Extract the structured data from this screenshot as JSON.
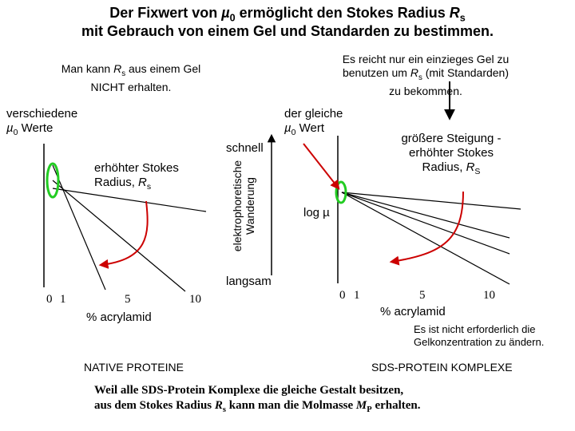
{
  "title": {
    "line1_a": "Der Fixwert von ",
    "line1_mu": "µ",
    "line1_mu_sub": "0",
    "line1_b": " ermöglicht den Stokes Radius ",
    "line1_r": "R",
    "line1_r_sub": "s",
    "line2": "mit Gebrauch von einem Gel und Standarden zu bestimmen."
  },
  "left_panel": {
    "note_a": "Man kann ",
    "note_r": "R",
    "note_r_sub": "s",
    "note_b": " aus einem Gel",
    "note_line2": "NICHT erhalten.",
    "label_a": "verschiedene",
    "label_mu": "µ",
    "label_mu_sub": "0",
    "label_b": " Werte",
    "annotation_line1": "erhöhter Stokes",
    "annotation_line2_a": "Radius, ",
    "annotation_r": "R",
    "annotation_r_sub": "s",
    "ticks": [
      "0",
      "1",
      "5",
      "10"
    ],
    "xlabel": "% acrylamid",
    "caption": "NATIVE PROTEINE"
  },
  "middle": {
    "fast": "schnell",
    "yaxis_line1": "elektrophoretische",
    "yaxis_line2": "Wanderung",
    "slow": "langsam"
  },
  "right_panel": {
    "note_line1": "Es reicht nur ein einzieges Gel zu",
    "note_line2_a": "benutzen um ",
    "note_r": "R",
    "note_r_sub": "s",
    "note_line2_b": " (mit Standarden)",
    "note_line3": "zu bekommen.",
    "label_line1": "der gleiche",
    "label_mu": "µ",
    "label_mu_sub": "0",
    "label_b": " Wert",
    "annotation_line1": "größere Steigung -",
    "annotation_line2": "erhöhter Stokes",
    "annotation_line3_a": "Radius, ",
    "annotation_r": "R",
    "annotation_r_sub": "S",
    "ylabel": "log µ",
    "ticks": [
      "0",
      "1",
      "5",
      "10"
    ],
    "xlabel": "% acrylamid",
    "footnote_line1": "Es ist nicht erforderlich die",
    "footnote_line2": "Gelkonzentration zu ändern.",
    "caption": "SDS-PROTEIN KOMPLEXE"
  },
  "conclusion": {
    "line1": "Weil alle SDS-Protein Komplexe die gleiche Gestalt besitzen,",
    "line2_a": "aus dem Stokes Radius ",
    "line2_r": "R",
    "line2_r_sub": "s",
    "line2_b": " kann man die Molmasse ",
    "line2_m": "M",
    "line2_m_sub": "P",
    "line2_c": " erhalten."
  },
  "colors": {
    "line": "#000000",
    "arrow_red": "#cc0000",
    "ellipse_green": "#22cc22"
  }
}
